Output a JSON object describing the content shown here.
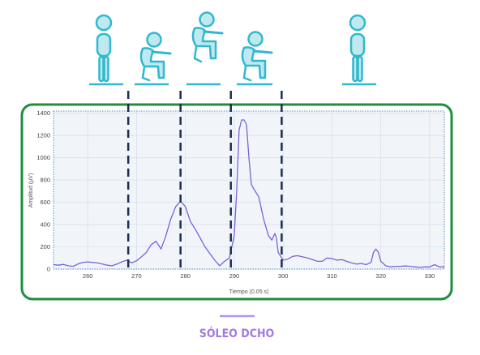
{
  "chart_data": {
    "type": "line",
    "xlabel": "Tiempo (0.05 s)",
    "ylabel": "Amplitud (µV)",
    "xlim": [
      253,
      333
    ],
    "ylim": [
      0,
      1420
    ],
    "x_ticks": [
      260,
      270,
      280,
      290,
      300,
      310,
      320,
      330
    ],
    "y_ticks": [
      0,
      200,
      400,
      600,
      800,
      1000,
      1200,
      1400
    ],
    "grid": true,
    "phase_markers_x": [
      268.3,
      279,
      289.3,
      299.7
    ],
    "caption": "SÓLEO DCHO",
    "line_color": "#7b62d6",
    "accent_colors": {
      "figure": "#2fb9ce",
      "figure_fill": "#bfe8ef",
      "frame": "#1f8f3a",
      "markers": "#1b2f4e",
      "caption": "#a37ae0"
    },
    "figure_icons": [
      "standing-person-icon",
      "squat-person-icon",
      "jump-person-icon",
      "squat-person-icon",
      "standing-person-icon"
    ],
    "series": [
      {
        "points": [
          [
            253,
            40
          ],
          [
            254,
            35
          ],
          [
            255,
            42
          ],
          [
            256,
            30
          ],
          [
            257,
            25
          ],
          [
            258,
            45
          ],
          [
            259,
            60
          ],
          [
            260,
            65
          ],
          [
            261,
            60
          ],
          [
            262,
            55
          ],
          [
            263,
            45
          ],
          [
            264,
            35
          ],
          [
            265,
            30
          ],
          [
            266,
            45
          ],
          [
            267,
            65
          ],
          [
            268,
            80
          ],
          [
            269,
            55
          ],
          [
            270,
            75
          ],
          [
            271,
            110
          ],
          [
            272,
            150
          ],
          [
            273,
            220
          ],
          [
            274,
            250
          ],
          [
            275,
            180
          ],
          [
            276,
            300
          ],
          [
            277,
            450
          ],
          [
            278,
            560
          ],
          [
            279,
            610
          ],
          [
            280,
            560
          ],
          [
            281,
            430
          ],
          [
            282,
            360
          ],
          [
            283,
            280
          ],
          [
            284,
            200
          ],
          [
            285,
            140
          ],
          [
            286,
            80
          ],
          [
            287,
            30
          ],
          [
            288,
            70
          ],
          [
            289,
            100
          ],
          [
            290,
            300
          ],
          [
            290.5,
            700
          ],
          [
            291,
            1250
          ],
          [
            291.5,
            1340
          ],
          [
            292,
            1340
          ],
          [
            292.5,
            1300
          ],
          [
            293,
            1000
          ],
          [
            293.5,
            760
          ],
          [
            294,
            720
          ],
          [
            295,
            650
          ],
          [
            296,
            450
          ],
          [
            297,
            300
          ],
          [
            297.7,
            260
          ],
          [
            298.3,
            320
          ],
          [
            298.6,
            290
          ],
          [
            299,
            150
          ],
          [
            300,
            80
          ],
          [
            301,
            90
          ],
          [
            302,
            115
          ],
          [
            303,
            120
          ],
          [
            304,
            110
          ],
          [
            305,
            100
          ],
          [
            306,
            85
          ],
          [
            307,
            70
          ],
          [
            308,
            70
          ],
          [
            309,
            100
          ],
          [
            310,
            95
          ],
          [
            311,
            80
          ],
          [
            312,
            85
          ],
          [
            313,
            70
          ],
          [
            314,
            55
          ],
          [
            315,
            45
          ],
          [
            316,
            50
          ],
          [
            317,
            40
          ],
          [
            318,
            60
          ],
          [
            318.5,
            150
          ],
          [
            319,
            180
          ],
          [
            319.5,
            150
          ],
          [
            320,
            70
          ],
          [
            321,
            30
          ],
          [
            322,
            20
          ],
          [
            323,
            25
          ],
          [
            324,
            25
          ],
          [
            325,
            28
          ],
          [
            326,
            25
          ],
          [
            327,
            20
          ],
          [
            328,
            15
          ],
          [
            329,
            20
          ],
          [
            330,
            20
          ],
          [
            331,
            40
          ],
          [
            332,
            20
          ],
          [
            333,
            20
          ]
        ]
      }
    ]
  }
}
